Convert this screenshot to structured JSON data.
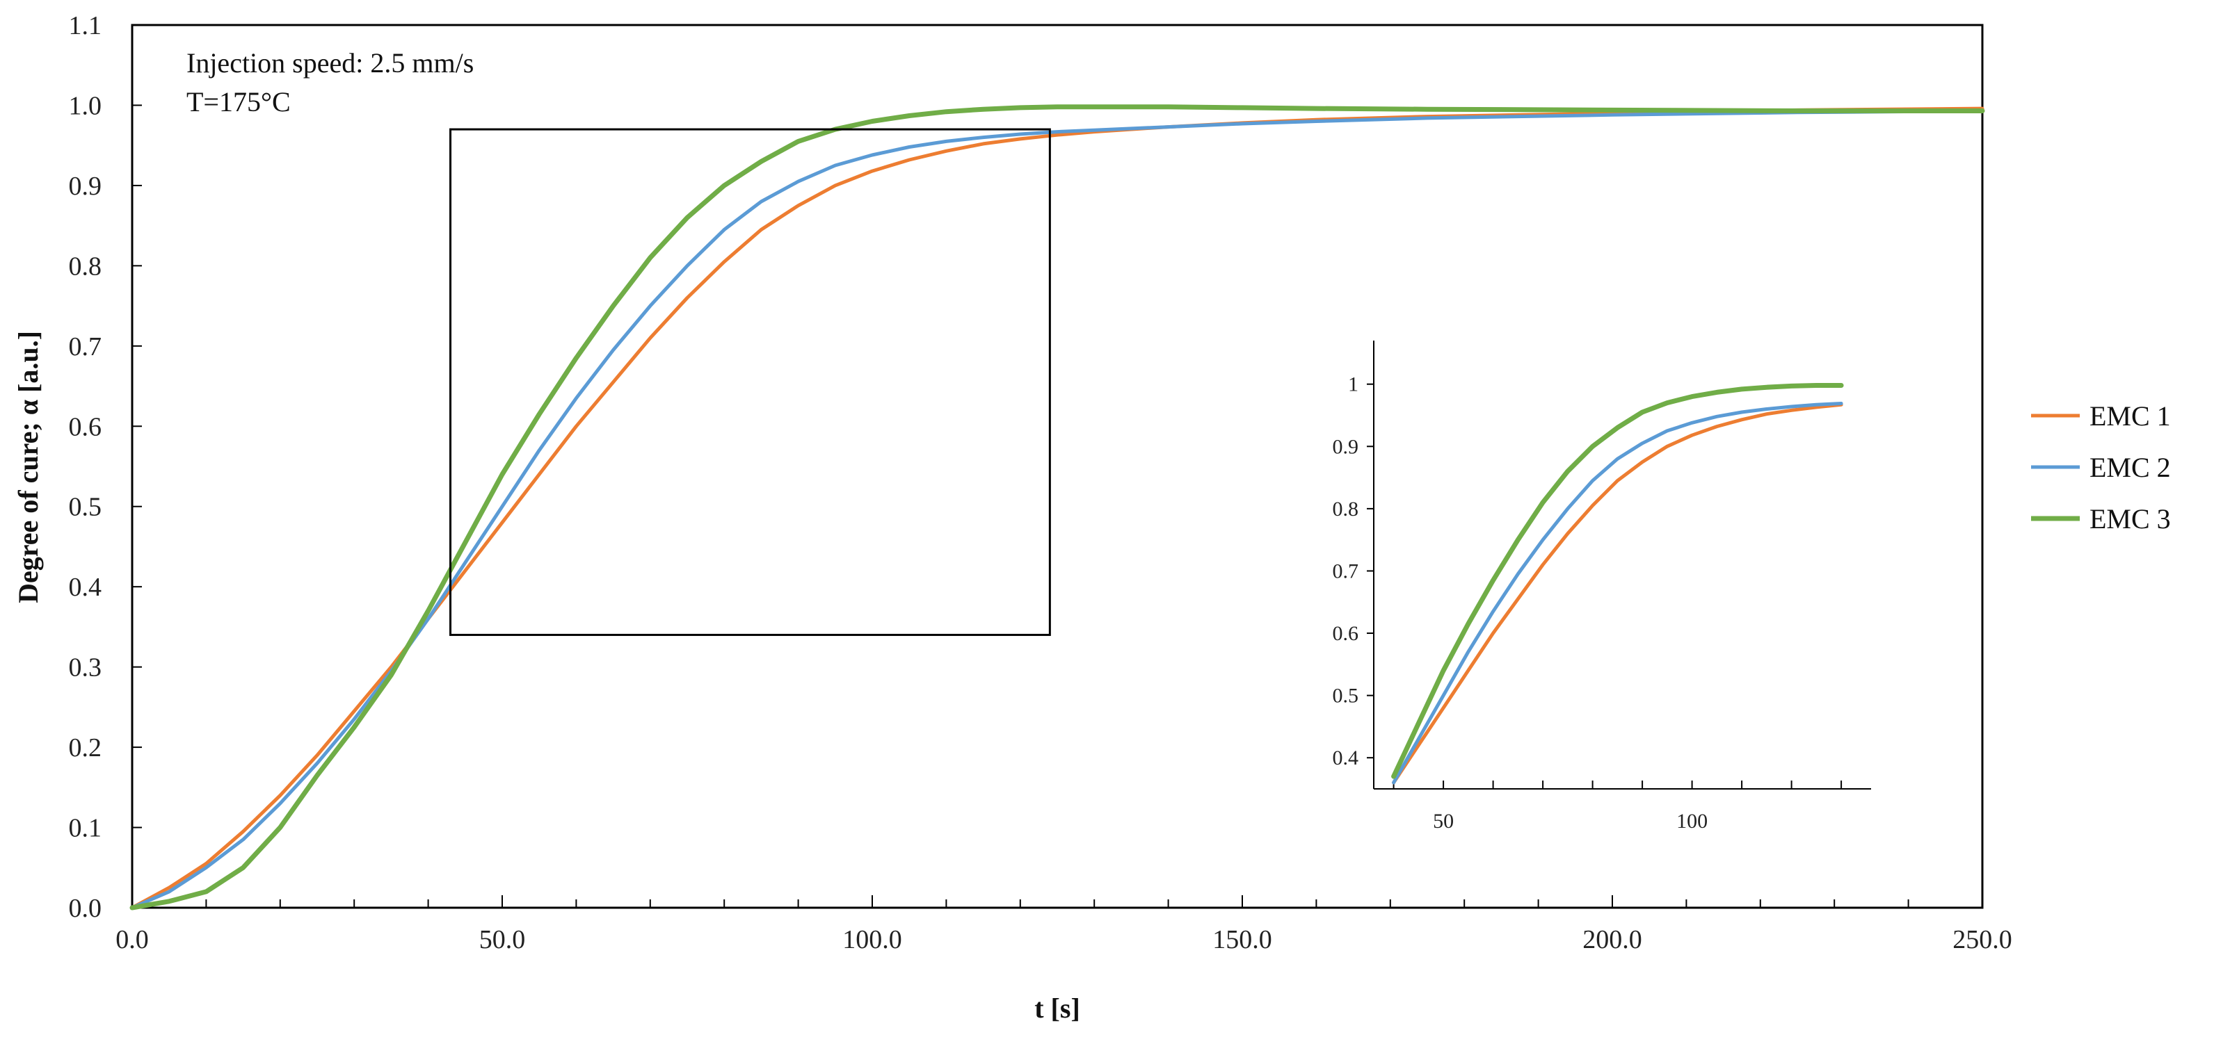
{
  "chart_data": {
    "type": "line",
    "xlabel": "t [s]",
    "ylabel": "Degree of cure; α [a.u.]",
    "xlim": [
      0,
      250
    ],
    "ylim": [
      0,
      1.1
    ],
    "x_ticks": [
      "0.0",
      "50.0",
      "100.0",
      "150.0",
      "200.0",
      "250.0"
    ],
    "y_ticks": [
      "0.0",
      "0.1",
      "0.2",
      "0.3",
      "0.4",
      "0.5",
      "0.6",
      "0.7",
      "0.8",
      "0.9",
      "1.0",
      "1.1"
    ],
    "annotations": [
      "Injection speed: 2.5 mm/s",
      "T=175°C"
    ],
    "legend_position": "right",
    "zoom_box": {
      "x": [
        43,
        124
      ],
      "y": [
        0.34,
        0.97
      ]
    },
    "series": [
      {
        "name": "EMC 1",
        "color": "#ED7D31",
        "x": [
          0,
          5,
          10,
          15,
          20,
          25,
          30,
          35,
          40,
          45,
          50,
          55,
          60,
          65,
          70,
          75,
          80,
          85,
          90,
          95,
          100,
          105,
          110,
          115,
          120,
          125,
          130,
          140,
          150,
          160,
          175,
          200,
          225,
          250
        ],
        "y": [
          0,
          0.025,
          0.055,
          0.095,
          0.14,
          0.19,
          0.245,
          0.3,
          0.36,
          0.42,
          0.48,
          0.54,
          0.6,
          0.655,
          0.71,
          0.76,
          0.805,
          0.845,
          0.875,
          0.9,
          0.918,
          0.932,
          0.943,
          0.952,
          0.958,
          0.963,
          0.967,
          0.973,
          0.978,
          0.982,
          0.986,
          0.99,
          0.994,
          0.996
        ]
      },
      {
        "name": "EMC 2",
        "color": "#5B9BD5",
        "x": [
          0,
          5,
          10,
          15,
          20,
          25,
          30,
          35,
          40,
          45,
          50,
          55,
          60,
          65,
          70,
          75,
          80,
          85,
          90,
          95,
          100,
          105,
          110,
          115,
          120,
          125,
          130,
          140,
          150,
          160,
          175,
          200,
          225,
          250
        ],
        "y": [
          0,
          0.02,
          0.05,
          0.085,
          0.13,
          0.18,
          0.235,
          0.295,
          0.36,
          0.43,
          0.5,
          0.57,
          0.635,
          0.695,
          0.75,
          0.8,
          0.845,
          0.88,
          0.905,
          0.925,
          0.938,
          0.948,
          0.955,
          0.96,
          0.964,
          0.967,
          0.969,
          0.973,
          0.977,
          0.98,
          0.984,
          0.988,
          0.991,
          0.993
        ]
      },
      {
        "name": "EMC 3",
        "color": "#70AD47",
        "x": [
          0,
          5,
          10,
          15,
          20,
          25,
          30,
          35,
          40,
          45,
          50,
          55,
          60,
          65,
          70,
          75,
          80,
          85,
          90,
          95,
          100,
          105,
          110,
          115,
          120,
          125,
          130,
          140,
          150,
          160,
          175,
          200,
          225,
          250
        ],
        "y": [
          0,
          0.008,
          0.02,
          0.05,
          0.1,
          0.165,
          0.225,
          0.29,
          0.37,
          0.455,
          0.54,
          0.615,
          0.685,
          0.75,
          0.81,
          0.86,
          0.9,
          0.93,
          0.955,
          0.97,
          0.98,
          0.987,
          0.992,
          0.995,
          0.997,
          0.998,
          0.998,
          0.998,
          0.997,
          0.996,
          0.995,
          0.994,
          0.993,
          0.993
        ]
      }
    ],
    "inset": {
      "x_ticks": [
        "50",
        "100"
      ],
      "y_ticks": [
        "0.4",
        "0.5",
        "0.6",
        "0.7",
        "0.8",
        "0.9",
        "1"
      ],
      "xlim": [
        36,
        136
      ],
      "ylim": [
        0.35,
        1.07
      ]
    }
  }
}
